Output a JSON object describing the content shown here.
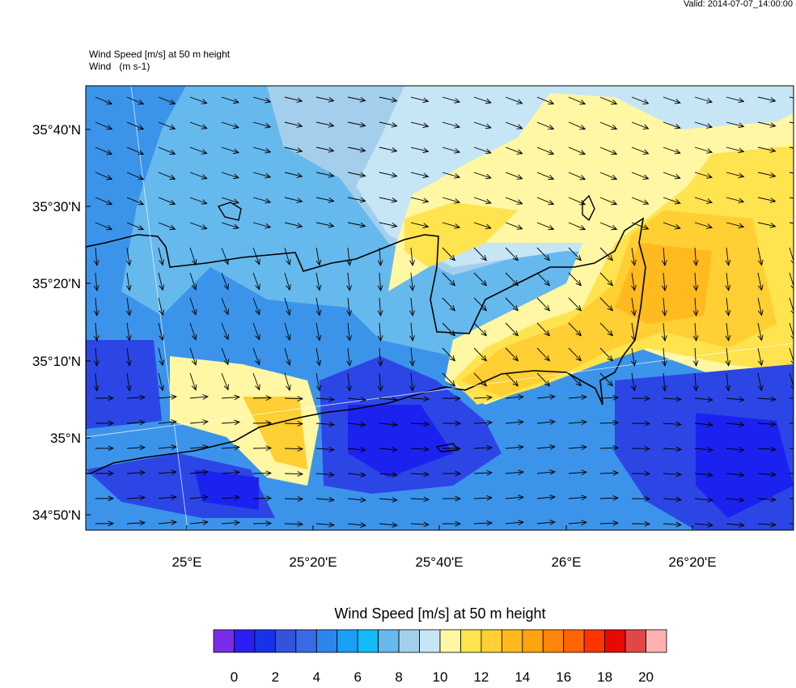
{
  "header": {
    "valid": "Valid: 2014-07-07_14:00:00"
  },
  "plot": {
    "title": "Wind Speed [m/s] at 50 m height",
    "subtitle": "Wind   (m s-1)",
    "lat_labels": [
      "35°40'N",
      "35°30'N",
      "35°20'N",
      "35°10'N",
      "35°N",
      "34°50'N"
    ],
    "lon_labels": [
      "25°E",
      "25°20'E",
      "25°40'E",
      "26°E",
      "26°20'E"
    ]
  },
  "colorbar": {
    "title": "Wind Speed [m/s] at 50 m height",
    "lim": [
      -1,
      21
    ],
    "ticks": [
      0,
      2,
      4,
      6,
      8,
      10,
      12,
      14,
      16,
      18,
      20
    ],
    "colors": [
      "#7a2de6",
      "#2c1df5",
      "#1733ea",
      "#3552db",
      "#3a6ae6",
      "#2b86ee",
      "#1a9ef6",
      "#12baf7",
      "#66b9ec",
      "#a4cfec",
      "#c6e5f5",
      "#fff7a3",
      "#ffe34f",
      "#ffcf33",
      "#ffba1f",
      "#ffa30f",
      "#ff840a",
      "#ff6405",
      "#ff3500",
      "#e80a00",
      "#e04848",
      "#ffb0b0"
    ]
  }
}
